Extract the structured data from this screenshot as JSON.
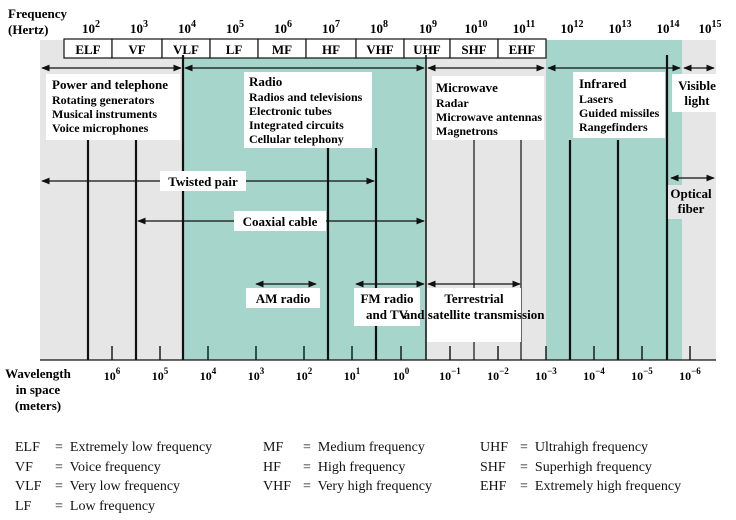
{
  "axis": {
    "freq_label_1": "Frequency",
    "freq_label_2": "(Hertz)",
    "wave_label_1": "Wavelength",
    "wave_label_2": "in space",
    "wave_label_3": "(meters)"
  },
  "freq_ticks": [
    {
      "base": "10",
      "exp": "2"
    },
    {
      "base": "10",
      "exp": "3"
    },
    {
      "base": "10",
      "exp": "4"
    },
    {
      "base": "10",
      "exp": "5"
    },
    {
      "base": "10",
      "exp": "6"
    },
    {
      "base": "10",
      "exp": "7"
    },
    {
      "base": "10",
      "exp": "8"
    },
    {
      "base": "10",
      "exp": "9"
    },
    {
      "base": "10",
      "exp": "10"
    },
    {
      "base": "10",
      "exp": "11"
    },
    {
      "base": "10",
      "exp": "12"
    },
    {
      "base": "10",
      "exp": "13"
    },
    {
      "base": "10",
      "exp": "14"
    },
    {
      "base": "10",
      "exp": "15"
    }
  ],
  "wave_ticks": [
    {
      "base": "10",
      "exp": "6"
    },
    {
      "base": "10",
      "exp": "5"
    },
    {
      "base": "10",
      "exp": "4"
    },
    {
      "base": "10",
      "exp": "3"
    },
    {
      "base": "10",
      "exp": "2"
    },
    {
      "base": "10",
      "exp": "1"
    },
    {
      "base": "10",
      "exp": "0"
    },
    {
      "base": "10",
      "exp": "−1"
    },
    {
      "base": "10",
      "exp": "−2"
    },
    {
      "base": "10",
      "exp": "−3"
    },
    {
      "base": "10",
      "exp": "−4"
    },
    {
      "base": "10",
      "exp": "−5"
    },
    {
      "base": "10",
      "exp": "−6"
    }
  ],
  "bands": [
    "ELF",
    "VF",
    "VLF",
    "LF",
    "MF",
    "HF",
    "VHF",
    "UHF",
    "SHF",
    "EHF"
  ],
  "regions": [
    {
      "title": "Power and telephone",
      "items": [
        "Rotating generators",
        "Musical instruments",
        "Voice microphones"
      ]
    },
    {
      "title": "Radio",
      "items": [
        "Radios and televisions",
        "Electronic tubes",
        "Integrated circuits",
        "Cellular telephony"
      ]
    },
    {
      "title": "Microwave",
      "items": [
        "Radar",
        "Microwave antennas",
        "Magnetrons"
      ]
    },
    {
      "title": "Infrared",
      "items": [
        "Lasers",
        "Guided missiles",
        "Rangefinders"
      ]
    },
    {
      "title": "Visible light",
      "items": []
    }
  ],
  "media": {
    "twisted_pair": "Twisted pair",
    "coaxial_cable": "Coaxial cable",
    "optical_fiber": "Optical fiber",
    "am_radio": "AM radio",
    "fm_radio_tv": "FM radio and TV",
    "terrestrial": "Terrestrial and satellite transmission"
  },
  "legend": [
    {
      "abbr": "ELF",
      "eq": "=",
      "text": "Extremely low frequency"
    },
    {
      "abbr": "VF",
      "eq": "=",
      "text": "Voice frequency"
    },
    {
      "abbr": "VLF",
      "eq": "=",
      "text": "Very low frequency"
    },
    {
      "abbr": "LF",
      "eq": "=",
      "text": "Low frequency"
    },
    {
      "abbr": "MF",
      "eq": "=",
      "text": "Medium frequency"
    },
    {
      "abbr": "HF",
      "eq": "=",
      "text": "High frequency"
    },
    {
      "abbr": "VHF",
      "eq": "=",
      "text": "Very high frequency"
    },
    {
      "abbr": "UHF",
      "eq": "=",
      "text": "Ultrahigh frequency"
    },
    {
      "abbr": "SHF",
      "eq": "=",
      "text": "Superhigh frequency"
    },
    {
      "abbr": "EHF",
      "eq": "=",
      "text": "Extremely high frequency"
    }
  ],
  "colors": {
    "gray_region": "#e6e6e6",
    "teal_region": "#a6d5cc",
    "line": "#111111",
    "white": "#ffffff"
  }
}
